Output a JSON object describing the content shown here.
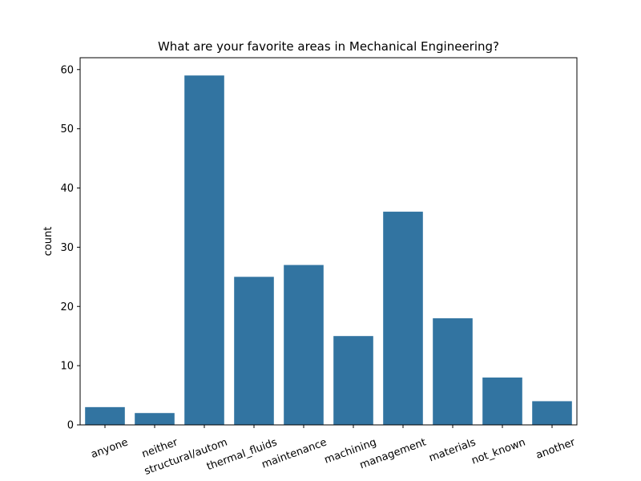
{
  "chart_data": {
    "type": "bar",
    "title": "What are your favorite areas in Mechanical Engineering?",
    "xlabel": "",
    "ylabel": "count",
    "categories": [
      "anyone",
      "neither",
      "structural/autom",
      "thermal_fluids",
      "maintenance",
      "machining",
      "management",
      "materials",
      "not_known",
      "another"
    ],
    "values": [
      3,
      2,
      59,
      25,
      27,
      15,
      36,
      18,
      8,
      4
    ],
    "ylim": [
      0,
      62
    ],
    "yticks": [
      0,
      10,
      20,
      30,
      40,
      50,
      60
    ],
    "bar_color": "#3274a1",
    "grid": false,
    "legend": "none",
    "xtick_rotation_deg": 20
  }
}
